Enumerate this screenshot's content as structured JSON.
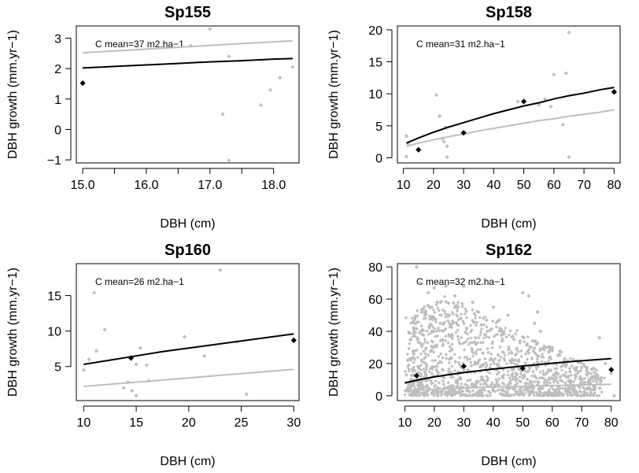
{
  "chart_data": [
    {
      "type": "scatter",
      "title": "Sp155",
      "xlabel": "DBH (cm)",
      "ylabel": "DBH growth (mm.yr−1)",
      "annotation": "C mean=37 m2.ha−1",
      "xlim": [
        14.9,
        18.4
      ],
      "ylim": [
        -1.1,
        3.4
      ],
      "xticks": [
        15.0,
        15.5,
        16.0,
        16.5,
        17.0,
        17.5,
        18.0
      ],
      "xtick_labels": [
        "15.0",
        "",
        "16.0",
        "",
        "17.0",
        "",
        "18.0"
      ],
      "yticks": [
        -1,
        0,
        1,
        2,
        3
      ],
      "ytick_labels": [
        "−1",
        "0",
        "1",
        "2",
        "3"
      ],
      "grid": false,
      "colors": {
        "observed": "#bebebe",
        "class_mean": "#000000",
        "fit": "#000000",
        "fit_mean": "#bebebe"
      },
      "observed": [
        [
          16.7,
          2.75
        ],
        [
          17.0,
          3.3
        ],
        [
          17.2,
          0.5
        ],
        [
          17.3,
          2.4
        ],
        [
          17.3,
          -1.02
        ],
        [
          17.8,
          0.8
        ],
        [
          17.95,
          1.3
        ],
        [
          18.1,
          1.7
        ],
        [
          18.3,
          2.05
        ]
      ],
      "class_means": [
        [
          15.0,
          1.52
        ]
      ],
      "curves": [
        {
          "color": "#000000",
          "x": [
            15.0,
            15.5,
            16.0,
            16.5,
            17.0,
            17.5,
            18.0,
            18.3
          ],
          "y": [
            2.02,
            2.07,
            2.12,
            2.17,
            2.22,
            2.26,
            2.31,
            2.33
          ]
        },
        {
          "color": "#bebebe",
          "x": [
            15.0,
            15.5,
            16.0,
            16.5,
            17.0,
            17.5,
            18.0,
            18.3
          ],
          "y": [
            2.52,
            2.58,
            2.64,
            2.7,
            2.76,
            2.82,
            2.88,
            2.91
          ]
        }
      ]
    },
    {
      "type": "scatter",
      "title": "Sp158",
      "xlabel": "DBH (cm)",
      "ylabel": "DBH growth (mm.yr−1)",
      "annotation": "C mean=31 m2.ha−1",
      "xlim": [
        8,
        82
      ],
      "ylim": [
        -0.8,
        20.6
      ],
      "xticks": [
        10,
        20,
        30,
        40,
        50,
        60,
        70,
        80
      ],
      "xtick_labels": [
        "10",
        "20",
        "30",
        "40",
        "50",
        "60",
        "70",
        "80"
      ],
      "yticks": [
        0,
        5,
        10,
        15,
        20
      ],
      "ytick_labels": [
        "0",
        "5",
        "10",
        "15",
        "20"
      ],
      "grid": false,
      "colors": {
        "observed": "#bebebe",
        "class_mean": "#000000",
        "fit": "#000000",
        "fit_mean": "#bebebe"
      },
      "observed": [
        [
          11,
          3.4
        ],
        [
          11,
          0.2
        ],
        [
          11.5,
          2.2
        ],
        [
          21,
          9.8
        ],
        [
          22,
          6.5
        ],
        [
          23,
          3.0
        ],
        [
          23.5,
          2.5
        ],
        [
          24,
          4.8
        ],
        [
          24.5,
          1.8
        ],
        [
          24.5,
          0.1
        ],
        [
          48,
          8.8
        ],
        [
          55,
          8.3
        ],
        [
          57,
          9.2
        ],
        [
          59,
          8.0
        ],
        [
          60,
          13.0
        ],
        [
          63,
          5.2
        ],
        [
          64,
          13.2
        ],
        [
          65,
          0.1
        ],
        [
          65,
          19.6
        ]
      ],
      "class_means": [
        [
          15,
          1.25
        ],
        [
          30,
          3.9
        ],
        [
          50,
          8.8
        ],
        [
          80,
          10.3
        ]
      ],
      "curves": [
        {
          "color": "#000000",
          "x": [
            11,
            15,
            20,
            25,
            30,
            35,
            40,
            45,
            50,
            55,
            60,
            65,
            70,
            75,
            80
          ],
          "y": [
            2.3,
            3.1,
            4.0,
            4.8,
            5.5,
            6.2,
            6.9,
            7.5,
            8.1,
            8.6,
            9.2,
            9.7,
            10.1,
            10.6,
            11.0
          ]
        },
        {
          "color": "#bebebe",
          "x": [
            11,
            15,
            20,
            25,
            30,
            35,
            40,
            45,
            50,
            55,
            60,
            65,
            70,
            75,
            80
          ],
          "y": [
            1.8,
            2.3,
            2.8,
            3.3,
            3.7,
            4.2,
            4.6,
            5.0,
            5.4,
            5.8,
            6.1,
            6.5,
            6.8,
            7.1,
            7.5
          ]
        }
      ]
    },
    {
      "type": "scatter",
      "title": "Sp160",
      "xlabel": "DBH (cm)",
      "ylabel": "DBH growth (mm.yr−1)",
      "annotation": "C mean=26 m2.ha−1",
      "xlim": [
        9.3,
        30.5
      ],
      "ylim": [
        0.2,
        19.5
      ],
      "xticks": [
        10,
        15,
        20,
        25,
        30
      ],
      "xtick_labels": [
        "10",
        "15",
        "20",
        "25",
        "30"
      ],
      "yticks": [
        5,
        10,
        15
      ],
      "ytick_labels": [
        "5",
        "10",
        "15"
      ],
      "grid": false,
      "colors": {
        "observed": "#bebebe",
        "class_mean": "#000000",
        "fit": "#000000",
        "fit_mean": "#bebebe"
      },
      "observed": [
        [
          10,
          4.5
        ],
        [
          10.5,
          6.0
        ],
        [
          11,
          15.4
        ],
        [
          11.2,
          7.2
        ],
        [
          12,
          10.2
        ],
        [
          13.8,
          2.0
        ],
        [
          14.2,
          2.8
        ],
        [
          14.6,
          1.6
        ],
        [
          15,
          0.9
        ],
        [
          15,
          5.3
        ],
        [
          15.4,
          7.6
        ],
        [
          16,
          5.2
        ],
        [
          16.2,
          3.0
        ],
        [
          19.6,
          9.2
        ],
        [
          21.5,
          6.5
        ],
        [
          23,
          18.6
        ],
        [
          24.6,
          8.5
        ],
        [
          25.5,
          1.1
        ]
      ],
      "class_means": [
        [
          14.5,
          6.2
        ],
        [
          30,
          8.7
        ]
      ],
      "curves": [
        {
          "color": "#000000",
          "x": [
            10,
            12.5,
            15,
            17.5,
            20,
            22.5,
            25,
            27.5,
            30
          ],
          "y": [
            5.3,
            5.9,
            6.5,
            7.1,
            7.6,
            8.1,
            8.6,
            9.1,
            9.6
          ]
        },
        {
          "color": "#bebebe",
          "x": [
            10,
            12.5,
            15,
            17.5,
            20,
            22.5,
            25,
            27.5,
            30
          ],
          "y": [
            2.2,
            2.5,
            2.8,
            3.1,
            3.4,
            3.7,
            4.0,
            4.3,
            4.6
          ]
        }
      ]
    },
    {
      "type": "scatter",
      "title": "Sp162",
      "xlabel": "DBH (cm)",
      "ylabel": "DBH growth (mm.yr−1)",
      "annotation": "C mean=32 m2.ha−1",
      "xlim": [
        7.5,
        83
      ],
      "ylim": [
        -3,
        82
      ],
      "xticks": [
        10,
        20,
        30,
        40,
        50,
        60,
        70,
        80
      ],
      "xtick_labels": [
        "10",
        "20",
        "30",
        "40",
        "50",
        "60",
        "70",
        "80"
      ],
      "yticks": [
        0,
        20,
        40,
        60,
        80
      ],
      "ytick_labels": [
        "0",
        "20",
        "40",
        "60",
        "80"
      ],
      "grid": false,
      "colors": {
        "observed": "#bebebe",
        "class_mean": "#000000",
        "fit": "#000000",
        "fit_mean": "#bebebe"
      },
      "observed": [
        [
          14,
          80
        ],
        [
          15,
          70
        ],
        [
          17,
          52
        ],
        [
          18,
          64
        ],
        [
          20,
          67
        ],
        [
          21,
          58
        ],
        [
          22,
          45
        ],
        [
          24,
          68
        ],
        [
          25,
          50
        ],
        [
          26,
          38
        ],
        [
          27,
          62
        ],
        [
          28,
          55
        ],
        [
          29,
          48
        ],
        [
          30,
          68
        ],
        [
          31,
          42
        ],
        [
          33,
          58
        ],
        [
          34,
          36
        ],
        [
          35,
          52
        ],
        [
          36,
          44
        ],
        [
          38,
          40
        ],
        [
          40,
          55
        ],
        [
          42,
          47
        ],
        [
          43,
          38
        ],
        [
          45,
          50
        ],
        [
          47,
          35
        ],
        [
          50,
          64
        ],
        [
          52,
          62
        ],
        [
          54,
          45
        ],
        [
          55,
          52
        ],
        [
          56,
          40
        ],
        [
          58,
          30
        ],
        [
          60,
          30
        ],
        [
          62,
          25
        ],
        [
          64,
          22
        ],
        [
          66,
          15
        ],
        [
          68,
          12
        ],
        [
          70,
          10
        ],
        [
          72,
          4
        ],
        [
          74,
          12
        ],
        [
          76,
          36
        ],
        [
          78,
          20
        ],
        [
          80,
          14
        ],
        [
          81,
          0
        ],
        [
          12,
          35
        ],
        [
          16,
          38
        ],
        [
          19,
          28
        ],
        [
          23,
          32
        ],
        [
          11,
          22
        ],
        [
          13,
          26
        ]
      ],
      "dense_cloud": {
        "approx_n": 1400,
        "x_range": [
          10,
          81
        ],
        "y_range": [
          0,
          80
        ],
        "x_mode": 24,
        "y_mode": 15
      },
      "class_means": [
        [
          14,
          12.5
        ],
        [
          30,
          18.3
        ],
        [
          50,
          17.0
        ],
        [
          80,
          16.2
        ]
      ],
      "curves": [
        {
          "color": "#000000",
          "x": [
            10,
            15,
            20,
            25,
            30,
            35,
            40,
            45,
            50,
            55,
            60,
            65,
            70,
            75,
            80
          ],
          "y": [
            8.0,
            10.0,
            11.7,
            13.1,
            14.4,
            15.5,
            16.6,
            17.5,
            18.5,
            19.3,
            20.2,
            21.0,
            21.7,
            22.4,
            23.1
          ]
        },
        {
          "color": "#bebebe",
          "x": [
            10,
            15,
            20,
            25,
            30,
            35,
            40,
            45,
            50,
            55,
            60,
            65,
            70,
            75,
            80
          ],
          "y": [
            3.0,
            3.6,
            4.0,
            4.4,
            4.8,
            5.1,
            5.4,
            5.6,
            5.9,
            6.1,
            6.3,
            6.5,
            6.7,
            6.9,
            7.1
          ]
        }
      ]
    }
  ]
}
